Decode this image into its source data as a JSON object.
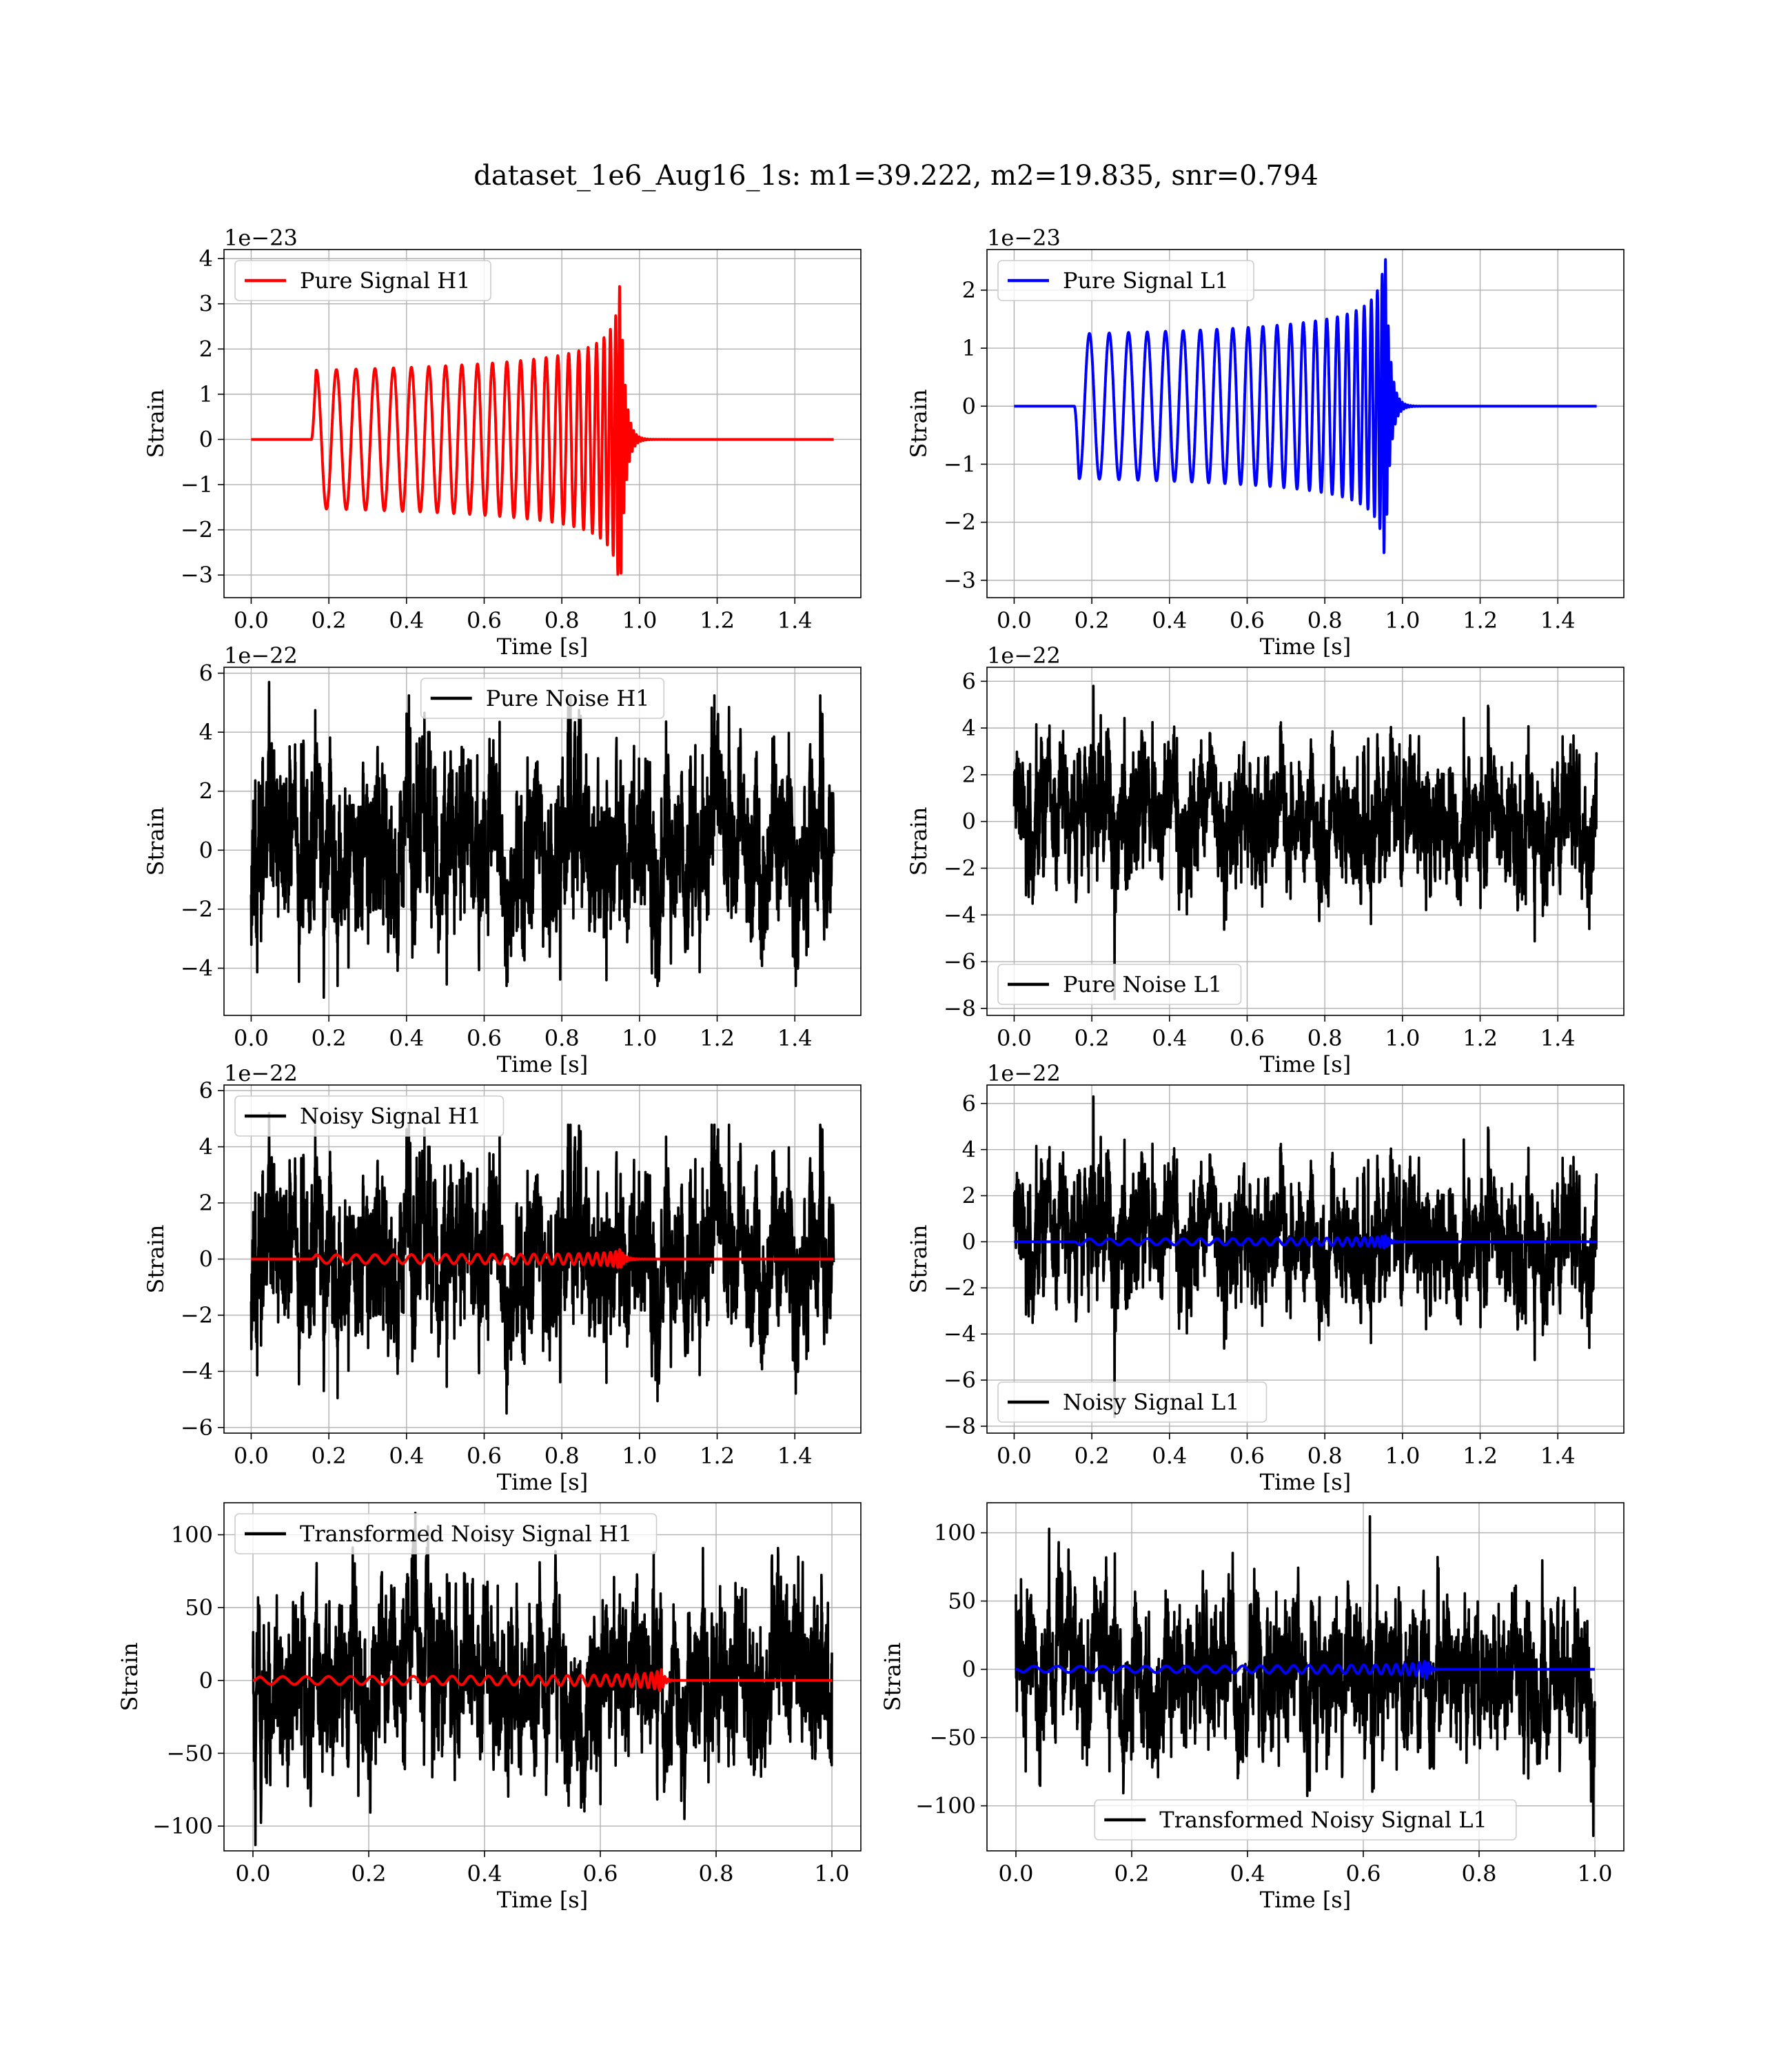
{
  "figure_title": "dataset_1e6_Aug16_1s: m1=39.222, m2=19.835, snr=0.794",
  "colors": {
    "h1_signal": "#ff0000",
    "l1_signal": "#0000ff",
    "noise": "#000000"
  },
  "chart_data": [
    {
      "id": "pure-signal-h1",
      "type": "line",
      "xlabel": "Time [s]",
      "ylabel": "Strain",
      "offset_text": "1e−23",
      "xlim": [
        -0.07,
        1.57
      ],
      "ylim": [
        -3.5,
        4.2
      ],
      "xticks": [
        0.0,
        0.2,
        0.4,
        0.6,
        0.8,
        1.0,
        1.2,
        1.4
      ],
      "xtick_labels": [
        "0.0",
        "0.2",
        "0.4",
        "0.6",
        "0.8",
        "1.0",
        "1.2",
        "1.4"
      ],
      "yticks": [
        -3,
        -2,
        -1,
        0,
        1,
        2,
        3,
        4
      ],
      "ytick_labels": [
        "−3",
        "−2",
        "−1",
        "0",
        "1",
        "2",
        "3",
        "4"
      ],
      "legend_loc": "upper-left",
      "grid": true,
      "series": [
        {
          "name": "Pure Signal H1",
          "color": "#ff0000",
          "kind": "chirp",
          "params": {
            "t_start": 0.155,
            "t_merge": 0.95,
            "t_end": 1.5,
            "f0": 19,
            "a0": 1.0,
            "a_peak": 3.6,
            "ringdown": 0.012,
            "phase": 0.0,
            "samples": 6000
          }
        }
      ]
    },
    {
      "id": "pure-signal-l1",
      "type": "line",
      "xlabel": "Time [s]",
      "ylabel": "Strain",
      "offset_text": "1e−23",
      "xlim": [
        -0.07,
        1.57
      ],
      "ylim": [
        -3.3,
        2.7
      ],
      "xticks": [
        0.0,
        0.2,
        0.4,
        0.6,
        0.8,
        1.0,
        1.2,
        1.4
      ],
      "xtick_labels": [
        "0.0",
        "0.2",
        "0.4",
        "0.6",
        "0.8",
        "1.0",
        "1.2",
        "1.4"
      ],
      "yticks": [
        -3,
        -2,
        -1,
        0,
        1,
        2
      ],
      "ytick_labels": [
        "−3",
        "−2",
        "−1",
        "0",
        "1",
        "2"
      ],
      "legend_loc": "upper-left",
      "grid": true,
      "series": [
        {
          "name": "Pure Signal L1",
          "color": "#0000ff",
          "kind": "chirp",
          "params": {
            "t_start": 0.155,
            "t_merge": 0.955,
            "t_end": 1.5,
            "f0": 19,
            "a0": 0.85,
            "a_peak": 2.8,
            "ringdown": 0.012,
            "phase": 3.14159,
            "samples": 6000
          }
        }
      ]
    },
    {
      "id": "pure-noise-h1",
      "type": "line",
      "xlabel": "Time [s]",
      "ylabel": "Strain",
      "offset_text": "1e−22",
      "xlim": [
        -0.07,
        1.57
      ],
      "ylim": [
        -5.6,
        6.2
      ],
      "xticks": [
        0.0,
        0.2,
        0.4,
        0.6,
        0.8,
        1.0,
        1.2,
        1.4
      ],
      "xtick_labels": [
        "0.0",
        "0.2",
        "0.4",
        "0.6",
        "0.8",
        "1.0",
        "1.2",
        "1.4"
      ],
      "yticks": [
        -4,
        -2,
        0,
        2,
        4,
        6
      ],
      "ytick_labels": [
        "−4",
        "−2",
        "0",
        "2",
        "4",
        "6"
      ],
      "legend_loc": "upper-center",
      "grid": true,
      "series": [
        {
          "name": "Pure Noise H1",
          "color": "#000000",
          "kind": "noise",
          "params": {
            "t_start": 0.0,
            "t_end": 1.5,
            "sigma": 1.65,
            "min": -5.0,
            "max": 5.7,
            "seed": 11,
            "samples": 3000
          }
        }
      ]
    },
    {
      "id": "pure-noise-l1",
      "type": "line",
      "xlabel": "Time [s]",
      "ylabel": "Strain",
      "offset_text": "1e−22",
      "xlim": [
        -0.07,
        1.57
      ],
      "ylim": [
        -8.3,
        6.6
      ],
      "xticks": [
        0.0,
        0.2,
        0.4,
        0.6,
        0.8,
        1.0,
        1.2,
        1.4
      ],
      "xtick_labels": [
        "0.0",
        "0.2",
        "0.4",
        "0.6",
        "0.8",
        "1.0",
        "1.2",
        "1.4"
      ],
      "yticks": [
        -8,
        -6,
        -4,
        -2,
        0,
        2,
        4,
        6
      ],
      "ytick_labels": [
        "−8",
        "−6",
        "−4",
        "−2",
        "0",
        "2",
        "4",
        "6"
      ],
      "legend_loc": "lower-left",
      "grid": true,
      "series": [
        {
          "name": "Pure Noise L1",
          "color": "#000000",
          "kind": "noise",
          "params": {
            "t_start": 0.0,
            "t_end": 1.5,
            "sigma": 1.55,
            "min": -7.6,
            "max": 5.8,
            "seed": 23,
            "samples": 3000
          }
        }
      ]
    },
    {
      "id": "noisy-signal-h1",
      "type": "line",
      "xlabel": "Time [s]",
      "ylabel": "Strain",
      "offset_text": "1e−22",
      "xlim": [
        -0.07,
        1.57
      ],
      "ylim": [
        -6.2,
        6.2
      ],
      "xticks": [
        0.0,
        0.2,
        0.4,
        0.6,
        0.8,
        1.0,
        1.2,
        1.4
      ],
      "xtick_labels": [
        "0.0",
        "0.2",
        "0.4",
        "0.6",
        "0.8",
        "1.0",
        "1.2",
        "1.4"
      ],
      "yticks": [
        -6,
        -4,
        -2,
        0,
        2,
        4,
        6
      ],
      "ytick_labels": [
        "−6",
        "−4",
        "−2",
        "0",
        "2",
        "4",
        "6"
      ],
      "legend_loc": "upper-left",
      "grid": true,
      "series": [
        {
          "name": "Noisy Signal H1",
          "color": "#000000",
          "kind": "noise",
          "params": {
            "t_start": 0.0,
            "t_end": 1.5,
            "sigma": 1.65,
            "min": -5.5,
            "max": 5.2,
            "seed": 11,
            "samples": 3000
          }
        },
        {
          "color": "#ff0000",
          "kind": "chirp",
          "params": {
            "t_start": 0.155,
            "t_merge": 0.95,
            "t_end": 1.5,
            "f0": 19,
            "a0": 0.1,
            "a_peak": 0.36,
            "ringdown": 0.012,
            "phase": 0.0,
            "samples": 6000
          }
        }
      ]
    },
    {
      "id": "noisy-signal-l1",
      "type": "line",
      "xlabel": "Time [s]",
      "ylabel": "Strain",
      "offset_text": "1e−22",
      "xlim": [
        -0.07,
        1.57
      ],
      "ylim": [
        -8.3,
        6.8
      ],
      "xticks": [
        0.0,
        0.2,
        0.4,
        0.6,
        0.8,
        1.0,
        1.2,
        1.4
      ],
      "xtick_labels": [
        "0.0",
        "0.2",
        "0.4",
        "0.6",
        "0.8",
        "1.0",
        "1.2",
        "1.4"
      ],
      "yticks": [
        -8,
        -6,
        -4,
        -2,
        0,
        2,
        4,
        6
      ],
      "ytick_labels": [
        "−8",
        "−6",
        "−4",
        "−2",
        "0",
        "2",
        "4",
        "6"
      ],
      "legend_loc": "lower-left",
      "grid": true,
      "series": [
        {
          "name": "Noisy Signal L1",
          "color": "#000000",
          "kind": "noise",
          "params": {
            "t_start": 0.0,
            "t_end": 1.5,
            "sigma": 1.55,
            "min": -7.6,
            "max": 6.3,
            "seed": 23,
            "samples": 3000
          }
        },
        {
          "color": "#0000ff",
          "kind": "chirp",
          "params": {
            "t_start": 0.155,
            "t_merge": 0.955,
            "t_end": 1.5,
            "f0": 19,
            "a0": 0.09,
            "a_peak": 0.3,
            "ringdown": 0.012,
            "phase": 3.14159,
            "samples": 6000
          }
        }
      ]
    },
    {
      "id": "transformed-noisy-signal-h1",
      "type": "line",
      "xlabel": "Time [s]",
      "ylabel": "Strain",
      "offset_text": "",
      "xlim": [
        -0.05,
        1.05
      ],
      "ylim": [
        -117,
        122
      ],
      "xticks": [
        0.0,
        0.2,
        0.4,
        0.6,
        0.8,
        1.0
      ],
      "xtick_labels": [
        "0.0",
        "0.2",
        "0.4",
        "0.6",
        "0.8",
        "1.0"
      ],
      "yticks": [
        -100,
        -50,
        0,
        50,
        100
      ],
      "ytick_labels": [
        "−100",
        "−50",
        "0",
        "50",
        "100"
      ],
      "legend_loc": "upper-left",
      "grid": true,
      "series": [
        {
          "name": "Transformed Noisy Signal H1",
          "color": "#000000",
          "kind": "noise",
          "params": {
            "t_start": 0.0,
            "t_end": 1.0,
            "sigma": 32,
            "min": -113,
            "max": 115,
            "seed": 37,
            "samples": 2600
          }
        },
        {
          "color": "#ff0000",
          "kind": "chirp",
          "params": {
            "t_start": 0.0,
            "t_merge": 0.705,
            "t_end": 1.0,
            "f0": 24,
            "a0": 1.2,
            "a_peak": 8,
            "ringdown": 0.006,
            "phase": 0.0,
            "samples": 5000
          }
        }
      ]
    },
    {
      "id": "transformed-noisy-signal-l1",
      "type": "line",
      "xlabel": "Time [s]",
      "ylabel": "Strain",
      "offset_text": "",
      "xlim": [
        -0.05,
        1.05
      ],
      "ylim": [
        -133,
        122
      ],
      "xticks": [
        0.0,
        0.2,
        0.4,
        0.6,
        0.8,
        1.0
      ],
      "xtick_labels": [
        "0.0",
        "0.2",
        "0.4",
        "0.6",
        "0.8",
        "1.0"
      ],
      "yticks": [
        -100,
        -50,
        0,
        50,
        100
      ],
      "ytick_labels": [
        "−100",
        "−50",
        "0",
        "50",
        "100"
      ],
      "legend_loc": "lower-center",
      "grid": true,
      "series": [
        {
          "name": "Transformed Noisy Signal L1",
          "color": "#000000",
          "kind": "noise",
          "params": {
            "t_start": 0.0,
            "t_end": 1.0,
            "sigma": 30,
            "min": -122,
            "max": 112,
            "seed": 53,
            "samples": 2600
          }
        },
        {
          "color": "#0000ff",
          "kind": "chirp",
          "params": {
            "t_start": 0.0,
            "t_merge": 0.71,
            "t_end": 1.0,
            "f0": 24,
            "a0": 1.0,
            "a_peak": 7,
            "ringdown": 0.006,
            "phase": 3.14159,
            "samples": 5000
          }
        }
      ]
    }
  ]
}
